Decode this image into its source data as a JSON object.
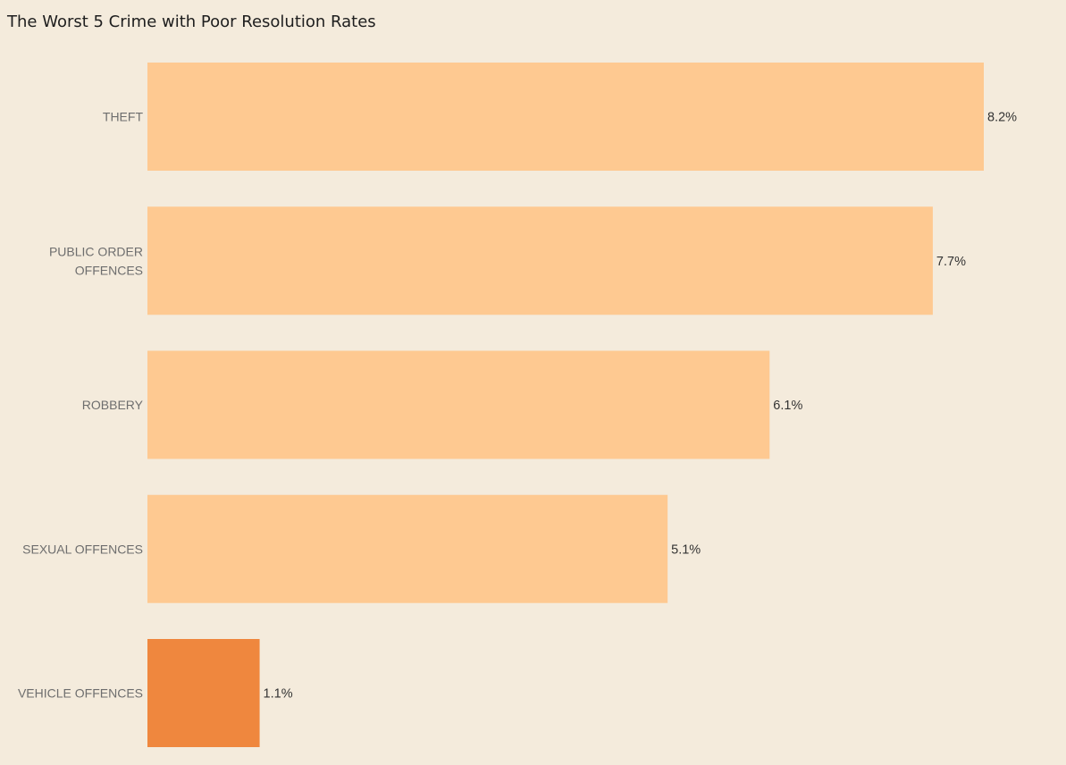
{
  "chart_data": {
    "type": "bar",
    "orientation": "horizontal",
    "title": "The Worst 5 Crime with Poor Resolution Rates",
    "xlabel": "",
    "ylabel": "",
    "categories": [
      "THEFT",
      "PUBLIC ORDER OFFENCES",
      "ROBBERY",
      "SEXUAL OFFENCES",
      "VEHICLE OFFENCES"
    ],
    "category_lines": [
      [
        "THEFT"
      ],
      [
        "PUBLIC ORDER",
        "OFFENCES"
      ],
      [
        "ROBBERY"
      ],
      [
        "SEXUAL OFFENCES"
      ],
      [
        "VEHICLE OFFENCES"
      ]
    ],
    "values": [
      8.2,
      7.7,
      6.1,
      5.1,
      1.1
    ],
    "value_labels": [
      "8.2%",
      "7.7%",
      "6.1%",
      "5.1%",
      "1.1%"
    ],
    "unit": "%",
    "highlight_index": 4,
    "colors": {
      "bar": "#fec991",
      "highlight": "#ef873e",
      "background": "#f4ebdc"
    },
    "grid": false,
    "legend": "none"
  }
}
